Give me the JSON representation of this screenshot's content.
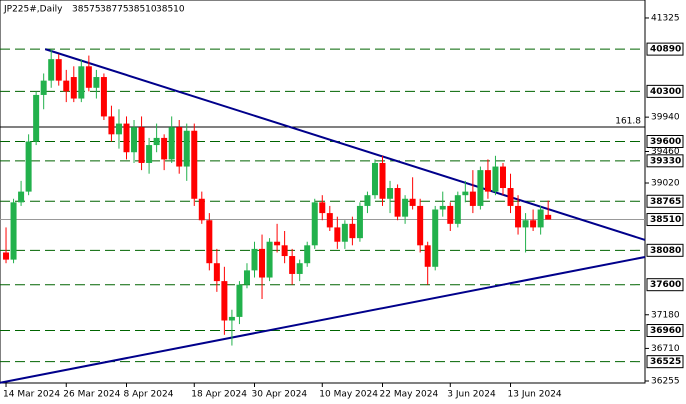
{
  "chart_data": {
    "type": "candlestick",
    "symbol": "JP225#,Daily",
    "categories": [
      "14 Mar 2024",
      null,
      null,
      null,
      null,
      null,
      null,
      null,
      "26 Mar 2024",
      null,
      null,
      null,
      null,
      null,
      null,
      null,
      "8 Apr 2024",
      null,
      null,
      null,
      null,
      null,
      null,
      null,
      null,
      "18 Apr 2024",
      null,
      null,
      null,
      null,
      null,
      null,
      null,
      "30 Apr 2024",
      null,
      null,
      null,
      null,
      null,
      null,
      null,
      null,
      "10 May 2024",
      null,
      null,
      null,
      null,
      null,
      null,
      null,
      "22 May 2024",
      null,
      null,
      null,
      null,
      null,
      null,
      null,
      null,
      "3 Jun 2024",
      null,
      null,
      null,
      null,
      null,
      null,
      null,
      "13 Jun 2024",
      null,
      null,
      null,
      null,
      null
    ],
    "ohlc": [
      [
        38050,
        38400,
        37900,
        37950
      ],
      [
        37950,
        38800,
        37900,
        38750
      ],
      [
        38750,
        39050,
        38700,
        38900
      ],
      [
        38900,
        39700,
        38850,
        39600
      ],
      [
        39600,
        40300,
        39550,
        40250
      ],
      [
        40250,
        40550,
        40050,
        40450
      ],
      [
        40450,
        40890,
        40350,
        40750
      ],
      [
        40750,
        40820,
        40380,
        40450
      ],
      [
        40450,
        40600,
        40150,
        40300
      ],
      [
        40500,
        40650,
        40150,
        40200
      ],
      [
        40200,
        40750,
        40150,
        40650
      ],
      [
        40650,
        40800,
        40300,
        40350
      ],
      [
        40350,
        40600,
        40200,
        40500
      ],
      [
        40500,
        40550,
        39900,
        39950
      ],
      [
        39950,
        40100,
        39600,
        39700
      ],
      [
        39700,
        40050,
        39500,
        39850
      ],
      [
        39850,
        39950,
        39350,
        39450
      ],
      [
        39450,
        39900,
        39300,
        39800
      ],
      [
        39800,
        39950,
        39200,
        39300
      ],
      [
        39300,
        39650,
        39150,
        39550
      ],
      [
        39550,
        39850,
        39450,
        39650
      ],
      [
        39650,
        39700,
        39200,
        39350
      ],
      [
        39350,
        39950,
        39300,
        39800
      ],
      [
        39800,
        39900,
        39150,
        39250
      ],
      [
        39250,
        39850,
        39050,
        39750
      ],
      [
        39750,
        39850,
        38700,
        38800
      ],
      [
        38800,
        38900,
        38450,
        38500
      ],
      [
        38500,
        38600,
        37800,
        37900
      ],
      [
        37900,
        38100,
        37500,
        37650
      ],
      [
        37650,
        37850,
        36900,
        37100
      ],
      [
        37100,
        37250,
        36750,
        37150
      ],
      [
        37150,
        37650,
        37050,
        37600
      ],
      [
        37600,
        37900,
        37550,
        37800
      ],
      [
        37800,
        38200,
        37700,
        38100
      ],
      [
        38100,
        38300,
        37400,
        37700
      ],
      [
        37700,
        38250,
        37650,
        38200
      ],
      [
        38200,
        38450,
        38050,
        38150
      ],
      [
        38150,
        38350,
        37900,
        38000
      ],
      [
        38000,
        38100,
        37600,
        37750
      ],
      [
        37750,
        37950,
        37650,
        37900
      ],
      [
        37900,
        38200,
        37850,
        38150
      ],
      [
        38150,
        38800,
        38100,
        38750
      ],
      [
        38750,
        38850,
        38500,
        38600
      ],
      [
        38600,
        38700,
        38350,
        38400
      ],
      [
        38400,
        38550,
        38100,
        38200
      ],
      [
        38200,
        38500,
        38100,
        38450
      ],
      [
        38450,
        38550,
        38150,
        38250
      ],
      [
        38250,
        38750,
        38200,
        38700
      ],
      [
        38700,
        38900,
        38600,
        38850
      ],
      [
        38850,
        39350,
        38800,
        39300
      ],
      [
        39300,
        39400,
        38700,
        38800
      ],
      [
        38800,
        39050,
        38600,
        38950
      ],
      [
        38950,
        39000,
        38500,
        38550
      ],
      [
        38550,
        38850,
        38450,
        38800
      ],
      [
        38800,
        39100,
        38650,
        38700
      ],
      [
        38700,
        38800,
        38050,
        38150
      ],
      [
        38150,
        38200,
        37600,
        37850
      ],
      [
        37850,
        38700,
        37800,
        38650
      ],
      [
        38650,
        38900,
        38550,
        38700
      ],
      [
        38700,
        38750,
        38350,
        38450
      ],
      [
        38450,
        38900,
        38400,
        38850
      ],
      [
        38850,
        39050,
        38750,
        38900
      ],
      [
        38900,
        39200,
        38600,
        38700
      ],
      [
        38700,
        39250,
        38650,
        39200
      ],
      [
        39200,
        39350,
        38800,
        38900
      ],
      [
        38900,
        39400,
        38850,
        39250
      ],
      [
        39250,
        39300,
        38850,
        38950
      ],
      [
        38950,
        39150,
        38600,
        38700
      ],
      [
        38700,
        38850,
        38300,
        38400
      ],
      [
        38400,
        38600,
        38050,
        38500
      ],
      [
        38500,
        38650,
        38350,
        38400
      ],
      [
        38400,
        38700,
        38300,
        38650
      ],
      [
        38575,
        38775,
        38510,
        38510
      ]
    ],
    "up_color": "#22b14c",
    "down_color": "#ff0000",
    "xlim": [
      -0.8,
      84.86
    ],
    "ylim": [
      36227,
      41576
    ],
    "yticks": [
      41325,
      39940,
      39460,
      39020,
      37180,
      36710,
      36255
    ],
    "levels": [
      40890,
      40300,
      39600,
      39330,
      38765,
      38080,
      37600,
      36960,
      36525
    ],
    "level_color": "#006400",
    "fib": {
      "label": "161.8",
      "value": 39803
    },
    "trendlines": [
      {
        "x": [
          5.2,
          84.86
        ],
        "values": [
          40890,
          38225
        ],
        "color": "#00008b"
      },
      {
        "x": [
          -0.8,
          84.86
        ],
        "values": [
          36230,
          37987
        ],
        "color": "#00008b"
      }
    ]
  }
}
